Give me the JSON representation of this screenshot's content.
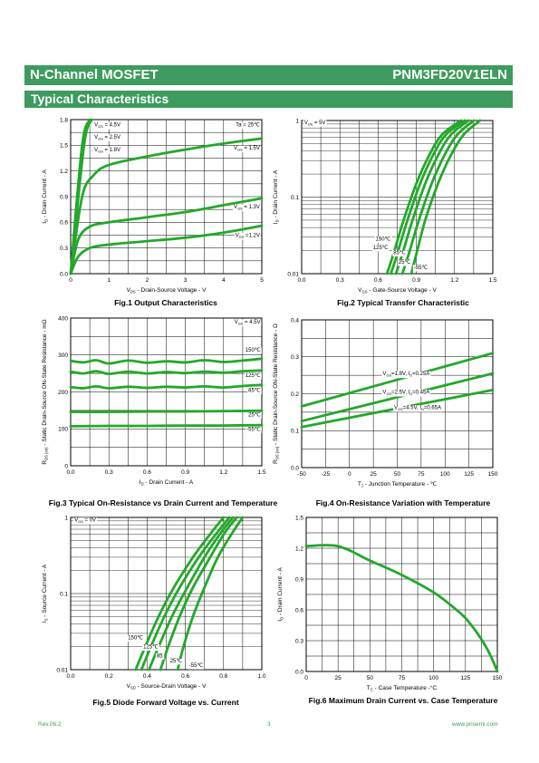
{
  "header": {
    "left": "N-Channel MOSFET",
    "right": "PNM3FD20V1ELN"
  },
  "section_title": "Typical Characteristics",
  "footer": {
    "rev": "Rev.06.2",
    "page": "3",
    "url": "www.prisemi.com"
  },
  "colors": {
    "band": "#3d9b5f",
    "curve": "#22a82a",
    "grid": "#000000"
  },
  "chart_data": [
    {
      "id": "fig1",
      "type": "line",
      "caption": "Fig.1 Output Characteristics",
      "xlabel": "V<sub>DS</sub> - Drain-Source Voltage - V",
      "ylabel": "I<sub>D</sub> - Drain Current - A",
      "xlim": [
        0,
        5
      ],
      "ylim": [
        0,
        1.8
      ],
      "xscale": "linear",
      "yscale": "linear",
      "xticks": [
        0,
        1,
        2,
        3,
        4,
        5
      ],
      "xticklabels": [
        "0",
        "1",
        "2",
        "3",
        "4",
        "5"
      ],
      "yticks": [
        0,
        0.3,
        0.6,
        0.9,
        1.2,
        1.5,
        1.8
      ],
      "yticklabels": [
        "0.0",
        "0.3",
        "0.6",
        "0.9",
        "1.2",
        "1.5",
        "1.8"
      ],
      "series": [
        {
          "x": [
            0,
            0.3,
            0.5
          ],
          "y": [
            0,
            1.5,
            1.8
          ]
        },
        {
          "x": [
            0,
            0.35,
            0.55
          ],
          "y": [
            0,
            1.5,
            1.8
          ]
        },
        {
          "x": [
            0,
            0.3,
            0.6,
            1,
            2,
            3,
            4,
            5
          ],
          "y": [
            0,
            0.9,
            1.15,
            1.27,
            1.37,
            1.45,
            1.52,
            1.58
          ]
        },
        {
          "x": [
            0,
            0.2,
            0.5,
            1,
            2,
            3,
            4,
            5
          ],
          "y": [
            0,
            0.4,
            0.55,
            0.6,
            0.66,
            0.72,
            0.8,
            0.88
          ]
        },
        {
          "x": [
            0,
            0.2,
            0.5,
            1,
            2,
            3,
            4,
            5
          ],
          "y": [
            0,
            0.2,
            0.3,
            0.34,
            0.38,
            0.42,
            0.48,
            0.56
          ]
        }
      ],
      "annotations": [
        {
          "text": "V<sub>GS</sub> = 4.5V",
          "x": 0.62,
          "y": 1.72,
          "anchor": "start"
        },
        {
          "text": "V<sub>GS</sub> = 2.5V",
          "x": 0.62,
          "y": 1.58,
          "anchor": "start"
        },
        {
          "text": "V<sub>GS</sub> = 1.8V",
          "x": 0.62,
          "y": 1.43,
          "anchor": "start"
        },
        {
          "text": "Ta = 25℃",
          "x": 4.95,
          "y": 1.72,
          "anchor": "end"
        },
        {
          "text": "V<sub>GS</sub> = 1.5V",
          "x": 4.95,
          "y": 1.45,
          "anchor": "end"
        },
        {
          "text": "V<sub>GS</sub> = 1.3V",
          "x": 4.95,
          "y": 0.76,
          "anchor": "end"
        },
        {
          "text": "V<sub>GS</sub> =1.2V",
          "x": 4.95,
          "y": 0.43,
          "anchor": "end"
        }
      ]
    },
    {
      "id": "fig2",
      "type": "line",
      "caption": "Fig.2 Typical Transfer Characteristic",
      "xlabel": "V<sub>GS</sub> - Gate-Source Voltage - V",
      "ylabel": "I<sub>D</sub> - Drain Current - A",
      "xlim": [
        0,
        1.5
      ],
      "ylim": [
        0.01,
        1
      ],
      "xscale": "linear",
      "yscale": "log",
      "xticks": [
        0,
        0.3,
        0.6,
        0.9,
        1.2,
        1.5
      ],
      "xticklabels": [
        "0.0",
        "0.3",
        "0.6",
        "0.9",
        "1.2",
        "1.5"
      ],
      "yticks": [
        0.01,
        0.1,
        1
      ],
      "yticklabels": [
        "0.01",
        "0.1",
        "1"
      ],
      "series": [
        {
          "x": [
            0.67,
            0.72,
            0.8,
            0.9,
            1.0,
            1.1,
            1.25
          ],
          "y": [
            0.01,
            0.018,
            0.05,
            0.15,
            0.35,
            0.65,
            1.0
          ]
        },
        {
          "x": [
            0.7,
            0.75,
            0.83,
            0.93,
            1.03,
            1.13,
            1.28
          ],
          "y": [
            0.01,
            0.018,
            0.05,
            0.15,
            0.35,
            0.65,
            1.0
          ]
        },
        {
          "x": [
            0.74,
            0.79,
            0.87,
            0.97,
            1.07,
            1.17,
            1.31
          ],
          "y": [
            0.01,
            0.018,
            0.05,
            0.15,
            0.35,
            0.65,
            1.0
          ]
        },
        {
          "x": [
            0.79,
            0.84,
            0.92,
            1.02,
            1.12,
            1.22,
            1.35
          ],
          "y": [
            0.01,
            0.018,
            0.05,
            0.15,
            0.35,
            0.65,
            1.0
          ]
        },
        {
          "x": [
            0.86,
            0.9,
            0.97,
            1.07,
            1.17,
            1.27,
            1.4
          ],
          "y": [
            0.01,
            0.018,
            0.05,
            0.15,
            0.35,
            0.65,
            1.0
          ]
        }
      ],
      "annotations": [
        {
          "text": "V<sub>DS</sub> = 5V",
          "x": 0.02,
          "y": 0.9,
          "anchor": "start"
        },
        {
          "text": "150℃",
          "x": 0.58,
          "y": 0.027,
          "anchor": "start"
        },
        {
          "text": "125℃",
          "x": 0.56,
          "y": 0.021,
          "anchor": "start"
        },
        {
          "text": "85℃",
          "x": 0.72,
          "y": 0.018,
          "anchor": "start"
        },
        {
          "text": "25℃",
          "x": 0.76,
          "y": 0.0135,
          "anchor": "start"
        },
        {
          "text": "-55℃",
          "x": 0.88,
          "y": 0.0115,
          "anchor": "start"
        }
      ]
    },
    {
      "id": "fig3",
      "type": "line",
      "caption": "Fig.3 Typical On-Resistance  vs Drain Current and Temperature",
      "xlabel": "I<sub>D</sub> - Drain Current - A",
      "ylabel": "R<sub>DS (on)</sub> - Static Drain-Source ON-State Resistance - mΩ",
      "xlim": [
        0,
        1.5
      ],
      "ylim": [
        0,
        400
      ],
      "xscale": "linear",
      "yscale": "linear",
      "xticks": [
        0,
        0.3,
        0.6,
        0.9,
        1.2,
        1.5
      ],
      "xticklabels": [
        "0.0",
        "0.3",
        "0.6",
        "0.9",
        "1.2",
        "1.5"
      ],
      "yticks": [
        0,
        100,
        200,
        300,
        400
      ],
      "yticklabels": [
        "0",
        "100",
        "200",
        "300",
        "400"
      ],
      "series": [
        {
          "x": [
            0,
            0.1,
            0.2,
            0.3,
            0.45,
            0.6,
            0.75,
            0.9,
            1.05,
            1.2,
            1.35,
            1.5
          ],
          "y": [
            284,
            280,
            286,
            277,
            285,
            279,
            283,
            280,
            286,
            281,
            285,
            290
          ]
        },
        {
          "x": [
            0,
            0.1,
            0.2,
            0.3,
            0.45,
            0.6,
            0.75,
            0.9,
            1.05,
            1.2,
            1.35,
            1.5
          ],
          "y": [
            255,
            250,
            256,
            249,
            255,
            250,
            254,
            251,
            255,
            252,
            256,
            258
          ]
        },
        {
          "x": [
            0,
            0.1,
            0.2,
            0.3,
            0.45,
            0.6,
            0.75,
            0.9,
            1.05,
            1.2,
            1.35,
            1.5
          ],
          "y": [
            213,
            210,
            215,
            210,
            214,
            211,
            214,
            212,
            215,
            212,
            216,
            219
          ]
        },
        {
          "x": [
            0,
            0.3,
            0.6,
            0.9,
            1.2,
            1.5
          ],
          "y": [
            146,
            146,
            147,
            147,
            148,
            149
          ]
        },
        {
          "x": [
            0,
            0.3,
            0.6,
            0.9,
            1.2,
            1.5
          ],
          "y": [
            107,
            108,
            108,
            109,
            109,
            110
          ]
        }
      ],
      "annotations": [
        {
          "text": "V<sub>GS</sub> = 4.5V",
          "x": 1.49,
          "y": 385,
          "anchor": "end"
        },
        {
          "text": "150℃",
          "x": 1.49,
          "y": 309,
          "anchor": "end"
        },
        {
          "text": "125℃",
          "x": 1.49,
          "y": 241,
          "anchor": "end"
        },
        {
          "text": "85℃",
          "x": 1.49,
          "y": 200,
          "anchor": "end"
        },
        {
          "text": "25℃",
          "x": 1.49,
          "y": 134,
          "anchor": "end"
        },
        {
          "text": "-55℃",
          "x": 1.49,
          "y": 95,
          "anchor": "end"
        }
      ]
    },
    {
      "id": "fig4",
      "type": "line",
      "caption": "Fig.4 On-Resistance Variation with Temperature",
      "xlabel": "T<sub>J</sub> - Junction Temperature - ℃",
      "ylabel": "R<sub>DS (on)</sub> - Static Drain-Source ON-State Resistance - Ω",
      "xlim": [
        -50,
        150
      ],
      "ylim": [
        0,
        0.4
      ],
      "xscale": "linear",
      "yscale": "linear",
      "xticks": [
        -50,
        -25,
        0,
        25,
        50,
        75,
        100,
        125,
        150
      ],
      "xticklabels": [
        "-50",
        "-25",
        "0",
        "25",
        "50",
        "75",
        "100",
        "125",
        "150"
      ],
      "yticks": [
        0,
        0.1,
        0.2,
        0.3,
        0.4
      ],
      "yticklabels": [
        "0.0",
        "0.1",
        "0.2",
        "0.3",
        "0.4"
      ],
      "series": [
        {
          "x": [
            -50,
            150
          ],
          "y": [
            0.166,
            0.31
          ]
        },
        {
          "x": [
            -50,
            150
          ],
          "y": [
            0.126,
            0.255
          ]
        },
        {
          "x": [
            -50,
            150
          ],
          "y": [
            0.11,
            0.21
          ]
        }
      ],
      "annotations": [
        {
          "text": "V<sub>GS</sub>=1.8V, I<sub>D</sub>=0.25A",
          "x": 84,
          "y": 0.25,
          "anchor": "end"
        },
        {
          "text": "V<sub>GS</sub>=2.5V, I<sub>D</sub>=0.45A",
          "x": 84,
          "y": 0.2,
          "anchor": "end"
        },
        {
          "text": "V<sub>GS</sub>=4.5V, I<sub>D</sub>=0.65A",
          "x": 96,
          "y": 0.158,
          "anchor": "end"
        }
      ]
    },
    {
      "id": "fig5",
      "type": "line",
      "caption": "Fig.5 Diode Forward Voltage vs. Current",
      "xlabel": "V<sub>SD</sub> - Source-Drain Voltage - V",
      "ylabel": "I<sub>S</sub> - Source Current - A",
      "xlim": [
        0,
        1.0
      ],
      "ylim": [
        0.01,
        1
      ],
      "xscale": "linear",
      "yscale": "log",
      "xticks": [
        0,
        0.2,
        0.4,
        0.6,
        0.8,
        1.0
      ],
      "xticklabels": [
        "0.0",
        "0.2",
        "0.4",
        "0.6",
        "0.8",
        "1.0"
      ],
      "yticks": [
        0.01,
        0.1,
        1
      ],
      "yticklabels": [
        "0.01",
        "0.1",
        "1"
      ],
      "series": [
        {
          "x": [
            0.34,
            0.39,
            0.46,
            0.54,
            0.64,
            0.74,
            0.8
          ],
          "y": [
            0.01,
            0.02,
            0.05,
            0.12,
            0.3,
            0.65,
            1.0
          ]
        },
        {
          "x": [
            0.37,
            0.42,
            0.49,
            0.57,
            0.67,
            0.77,
            0.83
          ],
          "y": [
            0.01,
            0.02,
            0.05,
            0.12,
            0.3,
            0.65,
            1.0
          ]
        },
        {
          "x": [
            0.41,
            0.46,
            0.53,
            0.61,
            0.7,
            0.79,
            0.85
          ],
          "y": [
            0.01,
            0.02,
            0.05,
            0.12,
            0.3,
            0.65,
            1.0
          ]
        },
        {
          "x": [
            0.47,
            0.51,
            0.57,
            0.64,
            0.73,
            0.81,
            0.87
          ],
          "y": [
            0.01,
            0.02,
            0.05,
            0.12,
            0.3,
            0.65,
            1.0
          ]
        },
        {
          "x": [
            0.56,
            0.59,
            0.64,
            0.7,
            0.77,
            0.85,
            0.9
          ],
          "y": [
            0.01,
            0.02,
            0.05,
            0.12,
            0.3,
            0.65,
            1.0
          ]
        }
      ],
      "annotations": [
        {
          "text": "V<sub>GS</sub> = 0V",
          "x": 0.02,
          "y": 0.88,
          "anchor": "start"
        },
        {
          "text": "150℃",
          "x": 0.3,
          "y": 0.025,
          "anchor": "start"
        },
        {
          "text": "125℃",
          "x": 0.38,
          "y": 0.019,
          "anchor": "start"
        },
        {
          "text": "85",
          "x": 0.45,
          "y": 0.0145,
          "anchor": "start"
        },
        {
          "text": "25℃",
          "x": 0.52,
          "y": 0.0125,
          "anchor": "start"
        },
        {
          "text": "-55℃",
          "x": 0.62,
          "y": 0.0108,
          "anchor": "start"
        }
      ]
    },
    {
      "id": "fig6",
      "type": "line",
      "caption": "Fig.6 Maximum Drain Current vs. Case Temperature",
      "xlabel": "T<sub>C</sub> - Case Temperature -°C",
      "ylabel": "I<sub>D</sub> - Drain Current - A",
      "xlim": [
        0,
        150
      ],
      "ylim": [
        0,
        1.5
      ],
      "xscale": "linear",
      "yscale": "linear",
      "xticks": [
        0,
        25,
        50,
        75,
        100,
        125,
        150
      ],
      "xticklabels": [
        "0",
        "25",
        "50",
        "75",
        "100",
        "125",
        "150"
      ],
      "yticks": [
        0,
        0.3,
        0.6,
        0.9,
        1.2,
        1.5
      ],
      "yticklabels": [
        "0.0",
        "0.3",
        "0.6",
        "0.9",
        "1.2",
        "1.5"
      ],
      "series": [
        {
          "x": [
            0,
            25,
            50,
            75,
            100,
            115,
            125,
            135,
            142,
            147,
            150
          ],
          "y": [
            1.22,
            1.22,
            1.08,
            0.94,
            0.77,
            0.63,
            0.52,
            0.36,
            0.22,
            0.09,
            0.0
          ]
        }
      ],
      "annotations": []
    }
  ]
}
